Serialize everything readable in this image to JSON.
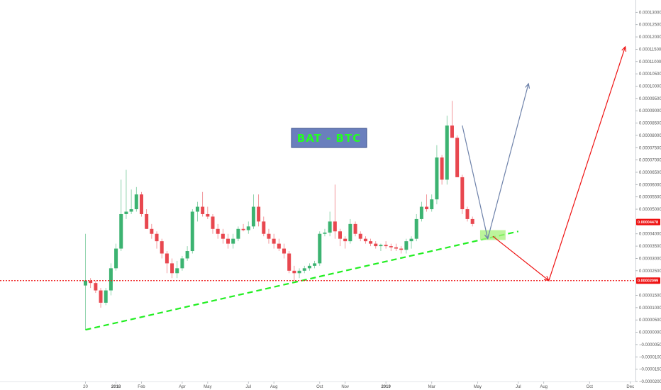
{
  "chart_data": {
    "type": "candlestick",
    "title": "BAT - BTC",
    "ylim": [
      -2e-05,
      0.000135
    ],
    "y_ticks": [
      {
        "v": 0.00013,
        "label": "0.00013000"
      },
      {
        "v": 0.000125,
        "label": "0.00012500"
      },
      {
        "v": 0.00012,
        "label": "0.00012000"
      },
      {
        "v": 0.000115,
        "label": "0.00011500"
      },
      {
        "v": 0.00011,
        "label": "0.00011000"
      },
      {
        "v": 0.000105,
        "label": "0.00010500"
      },
      {
        "v": 0.0001,
        "label": "0.00010000"
      },
      {
        "v": 9.5e-05,
        "label": "0.00009500"
      },
      {
        "v": 9e-05,
        "label": "0.00009000"
      },
      {
        "v": 8.5e-05,
        "label": "0.00008500"
      },
      {
        "v": 8e-05,
        "label": "0.00008000"
      },
      {
        "v": 7.5e-05,
        "label": "0.00007500"
      },
      {
        "v": 7e-05,
        "label": "0.00007000"
      },
      {
        "v": 6.5e-05,
        "label": "0.00006500"
      },
      {
        "v": 6e-05,
        "label": "0.00006000"
      },
      {
        "v": 5.5e-05,
        "label": "0.00005500"
      },
      {
        "v": 5e-05,
        "label": "0.00005000"
      },
      {
        "v": 4e-05,
        "label": "0.00004000"
      },
      {
        "v": 3.5e-05,
        "label": "0.00003500"
      },
      {
        "v": 3e-05,
        "label": "0.00003000"
      },
      {
        "v": 2.5e-05,
        "label": "0.00002500"
      },
      {
        "v": 1.5e-05,
        "label": "0.00001500"
      },
      {
        "v": 1e-05,
        "label": "0.00001000"
      },
      {
        "v": 5e-06,
        "label": "0.00000500"
      },
      {
        "v": 0.0,
        "label": "0.00000000"
      },
      {
        "v": -5e-06,
        "label": "−0.00000500"
      },
      {
        "v": -1e-05,
        "label": "−0.00001000"
      },
      {
        "v": -1.5e-05,
        "label": "−0.00001500"
      },
      {
        "v": -2e-05,
        "label": "−0.00002000"
      }
    ],
    "x_ticks": [
      {
        "i": 0,
        "label": "20",
        "bold": false
      },
      {
        "i": 6,
        "label": "2018",
        "bold": true
      },
      {
        "i": 11,
        "label": "Feb",
        "bold": false
      },
      {
        "i": 19,
        "label": "Apr",
        "bold": false
      },
      {
        "i": 24,
        "label": "May",
        "bold": false
      },
      {
        "i": 32,
        "label": "Jul",
        "bold": false
      },
      {
        "i": 37,
        "label": "Aug",
        "bold": false
      },
      {
        "i": 46,
        "label": "Oct",
        "bold": false
      },
      {
        "i": 51,
        "label": "Nov",
        "bold": false
      },
      {
        "i": 59,
        "label": "2019",
        "bold": true
      },
      {
        "i": 68,
        "label": "Mar",
        "bold": false
      },
      {
        "i": 77,
        "label": "May",
        "bold": false
      },
      {
        "i": 85,
        "label": "Jul",
        "bold": false
      },
      {
        "i": 90,
        "label": "Aug",
        "bold": false
      },
      {
        "i": 99,
        "label": "Oct",
        "bold": false
      },
      {
        "i": 107,
        "label": "Dec",
        "bold": false
      }
    ],
    "candles": [
      {
        "o": 1.9e-05,
        "h": 4e-05,
        "l": 1e-06,
        "c": 2.1e-05
      },
      {
        "o": 2.1e-05,
        "h": 2.2e-05,
        "l": 1.8e-05,
        "c": 2e-05
      },
      {
        "o": 2e-05,
        "h": 2.1e-05,
        "l": 1.6e-05,
        "c": 1.7e-05
      },
      {
        "o": 1.7e-05,
        "h": 1.8e-05,
        "l": 1e-05,
        "c": 1.2e-05
      },
      {
        "o": 1.2e-05,
        "h": 1.8e-05,
        "l": 1.1e-05,
        "c": 1.7e-05
      },
      {
        "o": 1.7e-05,
        "h": 2.8e-05,
        "l": 1.5e-05,
        "c": 2.6e-05
      },
      {
        "o": 2.6e-05,
        "h": 3.6e-05,
        "l": 2.5e-05,
        "c": 3.4e-05
      },
      {
        "o": 3.4e-05,
        "h": 6.2e-05,
        "l": 3.3e-05,
        "c": 4.8e-05
      },
      {
        "o": 4.8e-05,
        "h": 6.6e-05,
        "l": 4.6e-05,
        "c": 4.9e-05
      },
      {
        "o": 4.9e-05,
        "h": 5.8e-05,
        "l": 4.8e-05,
        "c": 5e-05
      },
      {
        "o": 5e-05,
        "h": 5.9e-05,
        "l": 4.9e-05,
        "c": 5.6e-05
      },
      {
        "o": 5.6e-05,
        "h": 5.7e-05,
        "l": 4.7e-05,
        "c": 4.8e-05
      },
      {
        "o": 4.8e-05,
        "h": 5e-05,
        "l": 4.2e-05,
        "c": 4.2e-05
      },
      {
        "o": 4.2e-05,
        "h": 4.4e-05,
        "l": 3.8e-05,
        "c": 4e-05
      },
      {
        "o": 4e-05,
        "h": 4.1e-05,
        "l": 3.4e-05,
        "c": 3.7e-05
      },
      {
        "o": 3.7e-05,
        "h": 3.8e-05,
        "l": 3e-05,
        "c": 3.2e-05
      },
      {
        "o": 3.2e-05,
        "h": 3.3e-05,
        "l": 2.4e-05,
        "c": 2.8e-05
      },
      {
        "o": 2.8e-05,
        "h": 3e-05,
        "l": 2.2e-05,
        "c": 2.4e-05
      },
      {
        "o": 2.4e-05,
        "h": 2.9e-05,
        "l": 2.2e-05,
        "c": 2.6e-05
      },
      {
        "o": 2.6e-05,
        "h": 3.1e-05,
        "l": 2.5e-05,
        "c": 3e-05
      },
      {
        "o": 3e-05,
        "h": 3.5e-05,
        "l": 2.9e-05,
        "c": 3.3e-05
      },
      {
        "o": 3.3e-05,
        "h": 5e-05,
        "l": 3.2e-05,
        "c": 4.9e-05
      },
      {
        "o": 4.9e-05,
        "h": 5.3e-05,
        "l": 4.5e-05,
        "c": 5.1e-05
      },
      {
        "o": 5.1e-05,
        "h": 5.7e-05,
        "l": 4.7e-05,
        "c": 4.8e-05
      },
      {
        "o": 4.8e-05,
        "h": 5.1e-05,
        "l": 4.6e-05,
        "c": 4.7e-05
      },
      {
        "o": 4.7e-05,
        "h": 4.8e-05,
        "l": 4e-05,
        "c": 4.2e-05
      },
      {
        "o": 4.2e-05,
        "h": 4.4e-05,
        "l": 3.8e-05,
        "c": 4e-05
      },
      {
        "o": 4e-05,
        "h": 4.2e-05,
        "l": 3.6e-05,
        "c": 3.8e-05
      },
      {
        "o": 3.8e-05,
        "h": 4e-05,
        "l": 3.4e-05,
        "c": 3.6e-05
      },
      {
        "o": 3.6e-05,
        "h": 4e-05,
        "l": 3.4e-05,
        "c": 3.8e-05
      },
      {
        "o": 3.8e-05,
        "h": 4.3e-05,
        "l": 3.7e-05,
        "c": 4.2e-05
      },
      {
        "o": 4.2e-05,
        "h": 4.4e-05,
        "l": 4.1e-05,
        "c": 4.15e-05
      },
      {
        "o": 4.15e-05,
        "h": 4.5e-05,
        "l": 4e-05,
        "c": 4.3e-05
      },
      {
        "o": 4.3e-05,
        "h": 5.6e-05,
        "l": 4.2e-05,
        "c": 5.1e-05
      },
      {
        "o": 5.1e-05,
        "h": 5.6e-05,
        "l": 4.3e-05,
        "c": 4.5e-05
      },
      {
        "o": 4.5e-05,
        "h": 4.7e-05,
        "l": 3.9e-05,
        "c": 4e-05
      },
      {
        "o": 4e-05,
        "h": 4.2e-05,
        "l": 3.6e-05,
        "c": 3.8e-05
      },
      {
        "o": 3.8e-05,
        "h": 4e-05,
        "l": 3.4e-05,
        "c": 3.6e-05
      },
      {
        "o": 3.6e-05,
        "h": 3.8e-05,
        "l": 3.3e-05,
        "c": 3.4e-05
      },
      {
        "o": 3.4e-05,
        "h": 3.6e-05,
        "l": 3e-05,
        "c": 3.2e-05
      },
      {
        "o": 3.2e-05,
        "h": 3.3e-05,
        "l": 2.4e-05,
        "c": 2.5e-05
      },
      {
        "o": 2.5e-05,
        "h": 2.7e-05,
        "l": 2.1e-05,
        "c": 2.4e-05
      },
      {
        "o": 2.4e-05,
        "h": 2.6e-05,
        "l": 2.2e-05,
        "c": 2.5e-05
      },
      {
        "o": 2.5e-05,
        "h": 2.7e-05,
        "l": 2.4e-05,
        "c": 2.6e-05
      },
      {
        "o": 2.6e-05,
        "h": 2.8e-05,
        "l": 2.5e-05,
        "c": 2.7e-05
      },
      {
        "o": 2.7e-05,
        "h": 2.9e-05,
        "l": 2.6e-05,
        "c": 2.8e-05
      },
      {
        "o": 2.8e-05,
        "h": 4.1e-05,
        "l": 2.7e-05,
        "c": 4e-05
      },
      {
        "o": 4e-05,
        "h": 4.2e-05,
        "l": 3.9e-05,
        "c": 4.05e-05
      },
      {
        "o": 4.05e-05,
        "h": 4.9e-05,
        "l": 3.9e-05,
        "c": 4.5e-05
      },
      {
        "o": 4.5e-05,
        "h": 6e-05,
        "l": 3.8e-05,
        "c": 4.1e-05
      },
      {
        "o": 4.1e-05,
        "h": 4.2e-05,
        "l": 3.5e-05,
        "c": 3.8e-05
      },
      {
        "o": 3.8e-05,
        "h": 3.9e-05,
        "l": 3.4e-05,
        "c": 3.7e-05
      },
      {
        "o": 3.7e-05,
        "h": 4.6e-05,
        "l": 3.6e-05,
        "c": 4.4e-05
      },
      {
        "o": 4.4e-05,
        "h": 4.5e-05,
        "l": 3.9e-05,
        "c": 4e-05
      },
      {
        "o": 4e-05,
        "h": 4.1e-05,
        "l": 3.7e-05,
        "c": 3.8e-05
      },
      {
        "o": 3.8e-05,
        "h": 3.9e-05,
        "l": 3.6e-05,
        "c": 3.7e-05
      },
      {
        "o": 3.7e-05,
        "h": 3.8e-05,
        "l": 3.5e-05,
        "c": 3.6e-05
      },
      {
        "o": 3.6e-05,
        "h": 3.7e-05,
        "l": 3.4e-05,
        "c": 3.5e-05
      },
      {
        "o": 3.5e-05,
        "h": 3.6e-05,
        "l": 3.3e-05,
        "c": 3.55e-05
      },
      {
        "o": 3.55e-05,
        "h": 3.7e-05,
        "l": 3.4e-05,
        "c": 3.5e-05
      },
      {
        "o": 3.5e-05,
        "h": 3.6e-05,
        "l": 3.3e-05,
        "c": 3.45e-05
      },
      {
        "o": 3.45e-05,
        "h": 3.6e-05,
        "l": 3.3e-05,
        "c": 3.4e-05
      },
      {
        "o": 3.4e-05,
        "h": 3.5e-05,
        "l": 3.2e-05,
        "c": 3.35e-05
      },
      {
        "o": 3.35e-05,
        "h": 3.8e-05,
        "l": 3.2e-05,
        "c": 3.7e-05
      },
      {
        "o": 3.7e-05,
        "h": 3.9e-05,
        "l": 3.4e-05,
        "c": 3.8e-05
      },
      {
        "o": 3.8e-05,
        "h": 4.8e-05,
        "l": 3.7e-05,
        "c": 4.6e-05
      },
      {
        "o": 4.6e-05,
        "h": 5.3e-05,
        "l": 4.5e-05,
        "c": 5.1e-05
      },
      {
        "o": 5.1e-05,
        "h": 5.6e-05,
        "l": 4.9e-05,
        "c": 5e-05
      },
      {
        "o": 5e-05,
        "h": 5.6e-05,
        "l": 4.9e-05,
        "c": 5.4e-05
      },
      {
        "o": 5.4e-05,
        "h": 7.6e-05,
        "l": 5.2e-05,
        "c": 7.1e-05
      },
      {
        "o": 7.1e-05,
        "h": 7.2e-05,
        "l": 6e-05,
        "c": 6.2e-05
      },
      {
        "o": 6.2e-05,
        "h": 8.8e-05,
        "l": 6e-05,
        "c": 8.4e-05
      },
      {
        "o": 8.4e-05,
        "h": 9.4e-05,
        "l": 8e-05,
        "c": 7.9e-05
      },
      {
        "o": 7.9e-05,
        "h": 8e-05,
        "l": 6.3e-05,
        "c": 6.3e-05
      },
      {
        "o": 6.3e-05,
        "h": 6.4e-05,
        "l": 4.8e-05,
        "c": 5e-05
      },
      {
        "o": 5e-05,
        "h": 5.1e-05,
        "l": 4.5e-05,
        "c": 4.6e-05
      },
      {
        "o": 4.6e-05,
        "h": 4.7e-05,
        "l": 4.3e-05,
        "c": 4.4e-05
      }
    ],
    "support_line": {
      "start": {
        "i": 0,
        "v": 1e-06
      },
      "end": {
        "i": 85,
        "v": 4.1e-05
      }
    },
    "horizontal_level": {
      "v": 2.099e-05,
      "label": "0.00002099"
    },
    "current_price": {
      "v": 4.478e-05,
      "label": "0.00004478"
    },
    "target_zone": {
      "i0": 77.5,
      "i1": 82.5,
      "v0": 3.75e-05,
      "v1": 4.15e-05
    },
    "projections": [
      {
        "color": "#6e82aa",
        "points": [
          {
            "i": 74,
            "v": 8.4e-05
          },
          {
            "i": 79,
            "v": 3.8e-05
          },
          {
            "i": 87,
            "v": 0.000101
          }
        ]
      },
      {
        "color": "#ee1111",
        "points": [
          {
            "i": 80,
            "v": 3.9e-05
          },
          {
            "i": 91,
            "v": 2.1e-05
          },
          {
            "i": 106,
            "v": 0.000116
          }
        ]
      }
    ],
    "colors": {
      "up": "#3cb371",
      "down": "#e8474f",
      "support": "#22ee22",
      "level": "#ee1111",
      "badge": "#ee1111",
      "title_bg": "#6a7fbd"
    }
  }
}
